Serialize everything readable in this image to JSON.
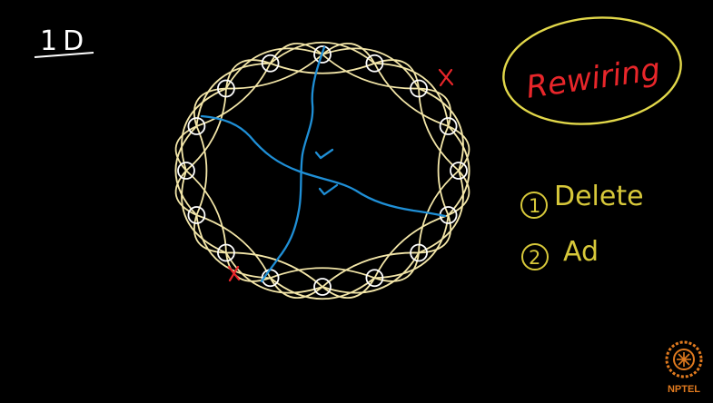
{
  "board": {
    "background": "#000000",
    "corner_label": "1D",
    "title": "Rewiring",
    "steps": [
      {
        "number": "1",
        "label": "Delete"
      },
      {
        "number": "2",
        "label": "Ad"
      }
    ],
    "delete_marks": [
      "x",
      "x"
    ],
    "check_marks": [
      "✓",
      "✓"
    ],
    "node_count": 16,
    "colors": {
      "ring": "#f3e6a8",
      "node": "#ffffff",
      "shortcut": "#1f8fd6",
      "title": "#e8262a",
      "title_ellipse": "#e2d84a",
      "steps": "#d7c83a",
      "marks": "#e8262a",
      "checks": "#1f8fd6"
    }
  },
  "logo": {
    "label": "NPTEL",
    "color": "#e07a1f"
  }
}
